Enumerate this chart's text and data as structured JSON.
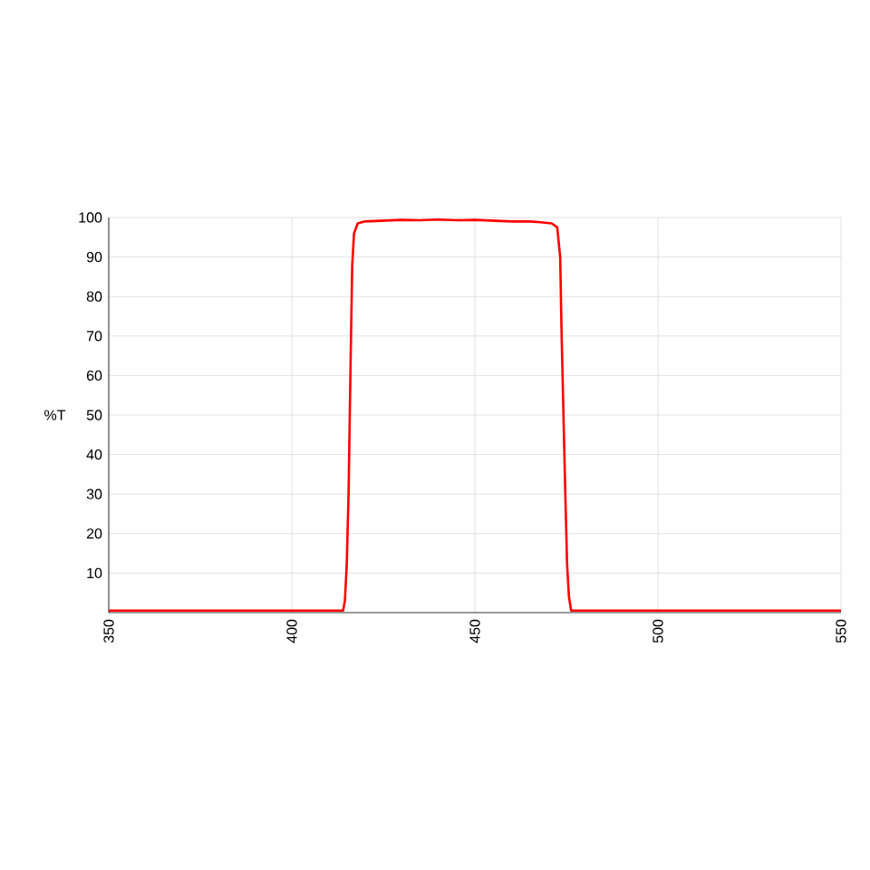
{
  "chart_data": {
    "type": "line",
    "ylabel": "%T",
    "x": [
      350,
      400,
      414,
      414.5,
      415,
      415.5,
      416,
      416.5,
      417,
      418,
      420,
      425,
      430,
      435,
      440,
      445,
      450,
      455,
      460,
      465,
      468,
      471,
      472.5,
      473.3,
      473.7,
      474.2,
      474.7,
      475.2,
      475.7,
      476.3,
      480,
      500,
      550
    ],
    "series": [
      {
        "color": "#ff0000",
        "values": [
          0.5,
          0.5,
          0.5,
          3,
          12,
          30,
          60,
          88,
          96,
          98.5,
          99,
          99.2,
          99.4,
          99.3,
          99.5,
          99.3,
          99.4,
          99.2,
          99,
          99,
          98.8,
          98.5,
          97.5,
          90,
          70,
          50,
          30,
          12,
          4,
          0.5,
          0.5,
          0.5,
          0.5
        ]
      }
    ],
    "xlim": [
      350,
      550
    ],
    "xticks": [
      350,
      400,
      450,
      500,
      550
    ],
    "ylim": [
      0,
      100
    ],
    "yticks": [
      10,
      20,
      30,
      40,
      50,
      60,
      70,
      80,
      90,
      100
    ],
    "grid": true,
    "marker": "none",
    "line_style": "solid"
  }
}
